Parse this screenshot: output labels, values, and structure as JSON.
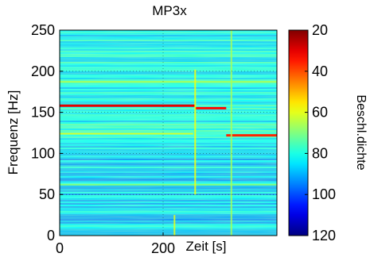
{
  "chart_data": {
    "type": "heatmap",
    "title": "MP3x",
    "xlabel": "Zeit [s]",
    "ylabel": "Frequenz [Hz]",
    "xlim": [
      0,
      420
    ],
    "ylim": [
      0,
      250
    ],
    "x_ticks": [
      {
        "value": 0,
        "label": "0"
      },
      {
        "value": 200,
        "label": "200"
      }
    ],
    "y_ticks": [
      {
        "value": 0,
        "label": "0"
      },
      {
        "value": 50,
        "label": "50"
      },
      {
        "value": 100,
        "label": "100"
      },
      {
        "value": 150,
        "label": "150"
      },
      {
        "value": 200,
        "label": "200"
      },
      {
        "value": 250,
        "label": "250"
      }
    ],
    "grid": true,
    "colorbar": {
      "label": "Beschl.dichte",
      "min": 20,
      "max": 120,
      "reversed": true,
      "ticks": [
        {
          "value": 20,
          "label": "20"
        },
        {
          "value": 40,
          "label": "40"
        },
        {
          "value": 60,
          "label": "60"
        },
        {
          "value": 80,
          "label": "80"
        },
        {
          "value": 100,
          "label": "100"
        },
        {
          "value": 120,
          "label": "120"
        }
      ]
    },
    "background_level": 82,
    "features": [
      {
        "kind": "horizontal-line",
        "y": 158,
        "x_start": 0,
        "x_end": 262,
        "level": 30
      },
      {
        "kind": "horizontal-line",
        "y": 155,
        "x_start": 262,
        "x_end": 322,
        "level": 33
      },
      {
        "kind": "horizontal-line",
        "y": 122,
        "x_start": 322,
        "x_end": 420,
        "level": 36
      },
      {
        "kind": "horizontal-line",
        "y": 124,
        "x_start": 0,
        "x_end": 258,
        "level": 62
      },
      {
        "kind": "horizontal-line",
        "y": 187,
        "x_start": 0,
        "x_end": 420,
        "level": 66
      },
      {
        "kind": "horizontal-line",
        "y": 62,
        "x_start": 0,
        "x_end": 420,
        "level": 70
      },
      {
        "kind": "vertical-line",
        "x": 262,
        "y_start": 50,
        "y_end": 202,
        "level": 58
      },
      {
        "kind": "vertical-line",
        "x": 332,
        "y_start": 0,
        "y_end": 250,
        "level": 66
      },
      {
        "kind": "vertical-line",
        "x": 222,
        "y_start": 0,
        "y_end": 25,
        "level": 60
      }
    ]
  }
}
